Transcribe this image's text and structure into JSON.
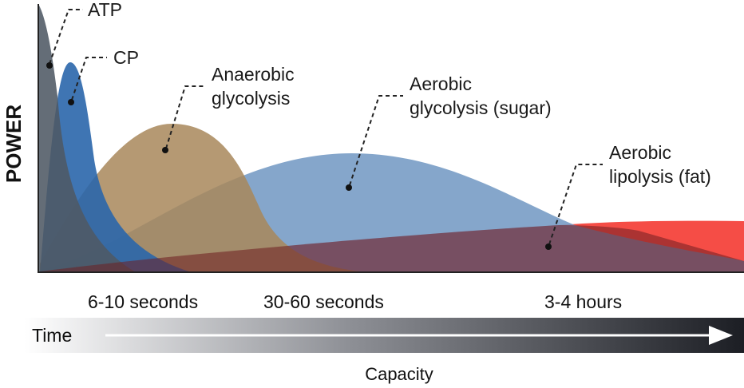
{
  "y_axis_title": "POWER",
  "x_axis_title": "Capacity",
  "timeline": {
    "label": "Time"
  },
  "durations": [
    "6-10 seconds",
    "30-60 seconds",
    "3-4 hours"
  ],
  "systems": [
    {
      "id": "atp",
      "lines": [
        "ATP"
      ],
      "color": "#525c66"
    },
    {
      "id": "cp",
      "lines": [
        "CP"
      ],
      "color": "#2c68ac"
    },
    {
      "id": "anaerobic",
      "lines": [
        "Anaerobic",
        "glycolysis"
      ],
      "color": "#ad8c5e"
    },
    {
      "id": "aerobic-sugar",
      "lines": [
        "Aerobic",
        "glycolysis (sugar)"
      ],
      "color": "#7d9fc6"
    },
    {
      "id": "aerobic-fat",
      "lines": [
        "Aerobic",
        "lipolysis (fat)"
      ],
      "color": "#f4433c"
    }
  ]
}
